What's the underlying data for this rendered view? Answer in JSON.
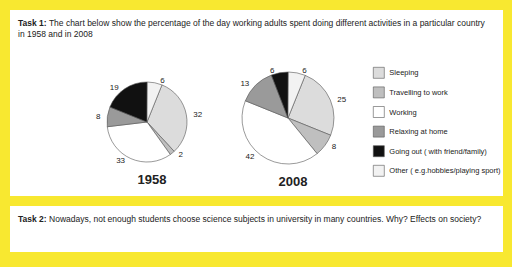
{
  "task1": {
    "label": "Task 1:",
    "text": "The chart below show the percentage of the day working adults spent doing different activities in a particular country in 1958 and in 2008"
  },
  "chart_data": [
    {
      "type": "pie",
      "title": "1958",
      "categories": [
        "Sleeping",
        "Travelling to work",
        "Working",
        "Relaxing at home",
        "Going out ( with friend/family)",
        "Other ( e.g.hobbies/playing sport)"
      ],
      "values": [
        32,
        2,
        33,
        8,
        19,
        6
      ],
      "colors": [
        "#dcdcdc",
        "#bfbfbf",
        "#ffffff",
        "#9a9a9a",
        "#111111",
        "#f2f2f2"
      ],
      "data_labels": true
    },
    {
      "type": "pie",
      "title": "2008",
      "categories": [
        "Sleeping",
        "Travelling to work",
        "Working",
        "Relaxing at home",
        "Going out ( with friend/family)",
        "Other ( e.g.hobbies/playing sport)"
      ],
      "values": [
        25,
        8,
        42,
        13,
        6,
        6
      ],
      "colors": [
        "#dcdcdc",
        "#bfbfbf",
        "#ffffff",
        "#9a9a9a",
        "#111111",
        "#f2f2f2"
      ],
      "data_labels": true,
      "legend": "right"
    }
  ],
  "task2": {
    "label": "Task 2:",
    "text": "Nowadays, not enough students choose science subjects in university in many countries. Why? Effects on society?"
  }
}
